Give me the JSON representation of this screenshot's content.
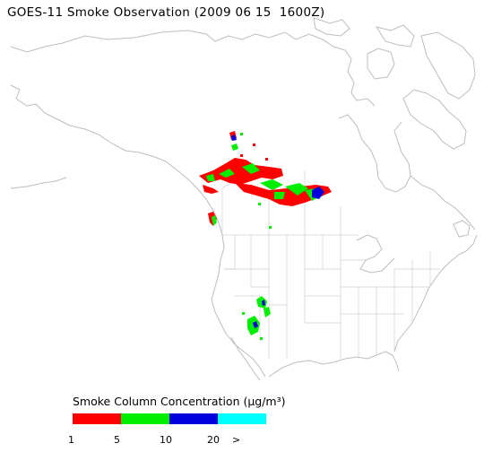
{
  "title": "GOES-11 Smoke Observation (2009 06 15  1600Z)",
  "legend": {
    "label": "Smoke Column Concentration (µg/m³)",
    "ranges": [
      {
        "from": "1",
        "to": "5",
        "color": "#ff0000"
      },
      {
        "from": "5",
        "to": "10",
        "color": "#00ee00"
      },
      {
        "from": "10",
        "to": "20",
        "color": "#0000dd"
      },
      {
        "from": "20",
        "to": ">",
        "color": "#00ffff"
      }
    ],
    "tick_labels": [
      "1",
      "5",
      "10",
      "20",
      ">"
    ]
  },
  "colors": {
    "coastline": "#bdbdbd",
    "state_borders": "#cfcfcf",
    "smoke_low": "#ff0000",
    "smoke_mid": "#00ee00",
    "smoke_high": "#0000dd",
    "smoke_max": "#00ffff"
  }
}
